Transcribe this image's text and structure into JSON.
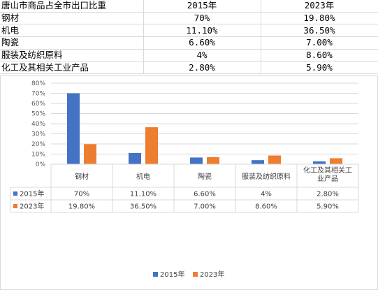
{
  "sheet": {
    "header": [
      "唐山市商品占全市出口比重",
      "2015年",
      "2023年"
    ],
    "rows": [
      [
        "钢材",
        "70%",
        "19.80%"
      ],
      [
        "机电",
        "11.10%",
        "36.50%"
      ],
      [
        "陶瓷",
        "6.60%",
        "7.00%"
      ],
      [
        "服装及纺织原料",
        "4%",
        "8.60%"
      ],
      [
        "化工及其相关工业产品",
        "2.80%",
        "5.90%"
      ]
    ]
  },
  "chart_data": {
    "type": "bar",
    "categories": [
      "钢材",
      "机电",
      "陶瓷",
      "服装及纺织原料",
      "化工及其相关工业产品"
    ],
    "category_lines": [
      [
        "钢材"
      ],
      [
        "机电"
      ],
      [
        "陶瓷"
      ],
      [
        "服装及纺织原料"
      ],
      [
        "化工及其相关工",
        "业产品"
      ]
    ],
    "series": [
      {
        "name": "2015年",
        "values": [
          70,
          11.1,
          6.6,
          4,
          2.8
        ],
        "labels": [
          "70%",
          "11.10%",
          "6.60%",
          "4%",
          "2.80%"
        ],
        "color": "#4472c4"
      },
      {
        "name": "2023年",
        "values": [
          19.8,
          36.5,
          7.0,
          8.6,
          5.9
        ],
        "labels": [
          "19.80%",
          "36.50%",
          "7.00%",
          "8.60%",
          "5.90%"
        ],
        "color": "#ed7d31"
      }
    ],
    "ylim": [
      0,
      80
    ],
    "yticks": [
      "0%",
      "10%",
      "20%",
      "30%",
      "40%",
      "50%",
      "60%",
      "70%",
      "80%"
    ],
    "grid": true,
    "legend": "bottom",
    "data_table": true
  }
}
